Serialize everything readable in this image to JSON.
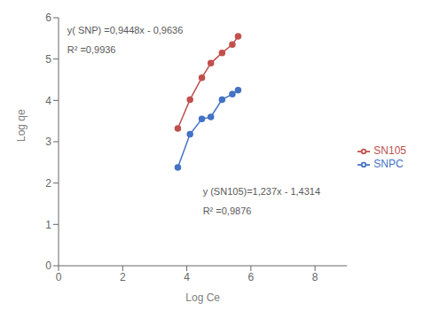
{
  "chart_data": {
    "type": "line",
    "x": [
      3.72,
      4.1,
      4.47,
      4.75,
      5.1,
      5.42,
      5.6
    ],
    "series": [
      {
        "name": "SNPC",
        "color": "#4472C4",
        "values": [
          2.38,
          3.18,
          3.55,
          3.6,
          4.02,
          4.15,
          4.25
        ],
        "marker": "circle"
      },
      {
        "name": "SN105",
        "color": "#C0504D",
        "values": [
          3.32,
          4.02,
          4.55,
          4.9,
          5.15,
          5.35,
          5.55
        ],
        "marker": "circle"
      }
    ],
    "xlabel": "Log Ce",
    "ylabel": "Log qe",
    "xlim": [
      0,
      9
    ],
    "ylim": [
      0,
      6
    ],
    "xticks": [
      0,
      2,
      4,
      6,
      8
    ],
    "yticks": [
      0,
      1,
      2,
      3,
      4,
      5,
      6
    ],
    "grid": false,
    "legend": "right",
    "annotations": [
      "y( SNP) =0,9448x - 0,9636",
      "R² =0,9936",
      "y (SN105)=1,237x - 1,4314",
      "R² =0,9876"
    ]
  }
}
